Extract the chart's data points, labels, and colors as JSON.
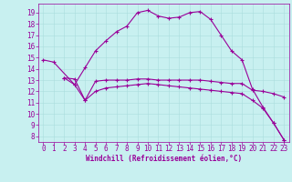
{
  "xlabel": "Windchill (Refroidissement éolien,°C)",
  "bg_color": "#c8f0f0",
  "line_color": "#990099",
  "grid_color": "#aadddd",
  "xlim": [
    -0.5,
    23.5
  ],
  "ylim": [
    7.5,
    19.8
  ],
  "xticks": [
    0,
    1,
    2,
    3,
    4,
    5,
    6,
    7,
    8,
    9,
    10,
    11,
    12,
    13,
    14,
    15,
    16,
    17,
    18,
    19,
    20,
    21,
    22,
    23
  ],
  "yticks": [
    8,
    9,
    10,
    11,
    12,
    13,
    14,
    15,
    16,
    17,
    18,
    19
  ],
  "line1_x": [
    0,
    1,
    3,
    4,
    5,
    6,
    7,
    8,
    9,
    10,
    11,
    12,
    13,
    14,
    15,
    16,
    17,
    18,
    19,
    20,
    21,
    22,
    23
  ],
  "line1_y": [
    14.8,
    14.6,
    12.6,
    14.1,
    15.6,
    16.5,
    17.3,
    17.8,
    19.0,
    19.2,
    18.7,
    18.5,
    18.6,
    19.0,
    19.1,
    18.4,
    17.0,
    15.6,
    14.8,
    12.2,
    10.6,
    9.2,
    7.7
  ],
  "line2_x": [
    2,
    3,
    4,
    5,
    6,
    7,
    8,
    9,
    10,
    11,
    12,
    13,
    14,
    15,
    16,
    17,
    18,
    19,
    20,
    21,
    22,
    23
  ],
  "line2_y": [
    13.2,
    13.1,
    11.2,
    12.9,
    13.0,
    13.0,
    13.0,
    13.1,
    13.1,
    13.0,
    13.0,
    13.0,
    13.0,
    13.0,
    12.9,
    12.8,
    12.7,
    12.7,
    12.1,
    12.0,
    11.8,
    11.5
  ],
  "line3_x": [
    2,
    3,
    4,
    5,
    6,
    7,
    8,
    9,
    10,
    11,
    12,
    13,
    14,
    15,
    16,
    17,
    18,
    19,
    20,
    21,
    22,
    23
  ],
  "line3_y": [
    13.2,
    12.6,
    11.2,
    12.0,
    12.3,
    12.4,
    12.5,
    12.6,
    12.7,
    12.6,
    12.5,
    12.4,
    12.3,
    12.2,
    12.1,
    12.0,
    11.9,
    11.8,
    11.2,
    10.5,
    9.2,
    7.7
  ],
  "tick_fontsize": 5.5,
  "xlabel_fontsize": 5.5,
  "marker_size": 2.5,
  "line_width": 0.8
}
